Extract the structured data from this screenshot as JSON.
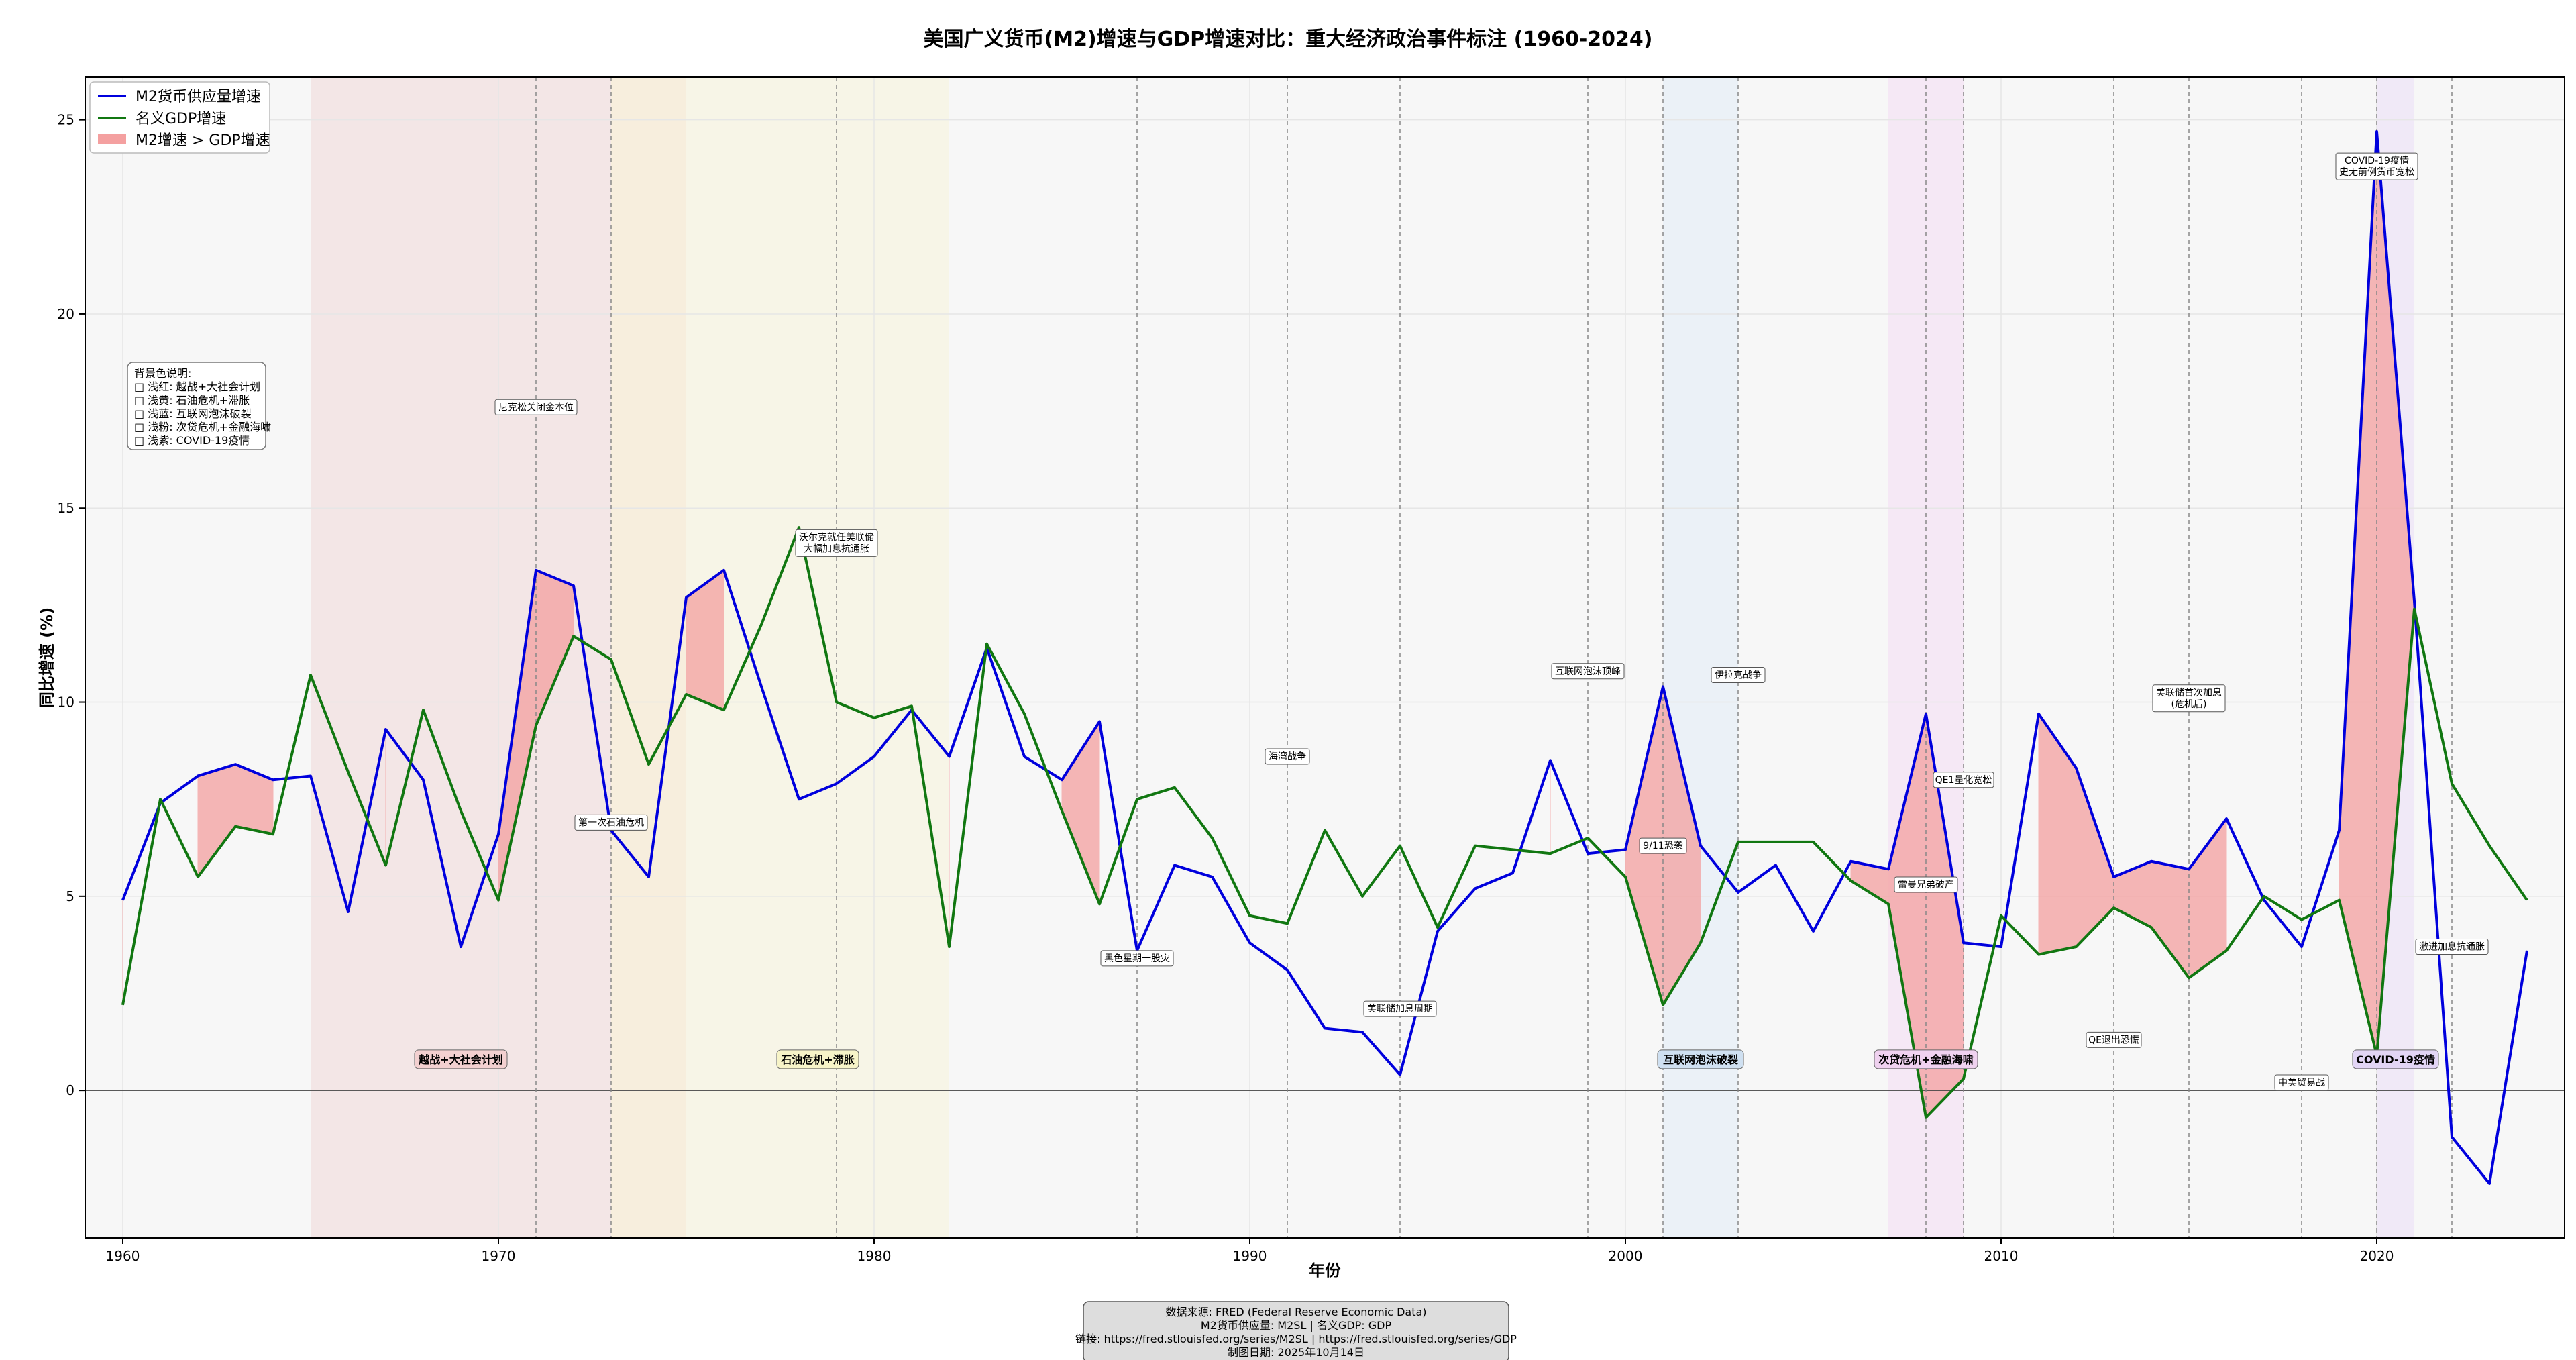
{
  "chart_data": {
    "type": "line",
    "title": "美国广义货币(M2)增速与GDP增速对比：重大经济政治事件标注 (1960-2024)",
    "xlabel": "年份",
    "ylabel": "同比增速 (%)",
    "xlim": [
      1959,
      2025
    ],
    "ylim": [
      -3.8,
      26.1
    ],
    "xticks": [
      1960,
      1970,
      1980,
      1990,
      2000,
      2010,
      2020
    ],
    "yticks": [
      0,
      5,
      10,
      15,
      20,
      25
    ],
    "grid": true,
    "legend_position": "top-left",
    "x": [
      1960,
      1961,
      1962,
      1963,
      1964,
      1965,
      1966,
      1967,
      1968,
      1969,
      1970,
      1971,
      1972,
      1973,
      1974,
      1975,
      1976,
      1977,
      1978,
      1979,
      1980,
      1981,
      1982,
      1983,
      1984,
      1985,
      1986,
      1987,
      1988,
      1989,
      1990,
      1991,
      1992,
      1993,
      1994,
      1995,
      1996,
      1997,
      1998,
      1999,
      2000,
      2001,
      2002,
      2003,
      2004,
      2005,
      2006,
      2007,
      2008,
      2009,
      2010,
      2011,
      2012,
      2013,
      2014,
      2015,
      2016,
      2017,
      2018,
      2019,
      2020,
      2021,
      2022,
      2023,
      2024
    ],
    "series": [
      {
        "name": "M2货币供应量增速",
        "color": "#0000dd",
        "values": [
          4.9,
          7.4,
          8.1,
          8.4,
          8.0,
          8.1,
          4.6,
          9.3,
          8.0,
          3.7,
          6.6,
          13.4,
          13.0,
          6.7,
          5.5,
          12.7,
          13.4,
          10.4,
          7.5,
          7.9,
          8.6,
          9.8,
          8.6,
          11.4,
          8.6,
          8.0,
          9.5,
          3.6,
          5.8,
          5.5,
          3.8,
          3.1,
          1.6,
          1.5,
          0.4,
          4.1,
          5.2,
          5.6,
          8.5,
          6.1,
          6.2,
          10.4,
          6.3,
          5.1,
          5.8,
          4.1,
          5.9,
          5.7,
          9.7,
          3.8,
          3.7,
          9.7,
          8.3,
          5.5,
          5.9,
          5.7,
          7.0,
          4.9,
          3.7,
          6.7,
          24.7,
          12.6,
          -1.2,
          -2.4,
          3.6
        ]
      },
      {
        "name": "名义GDP增速",
        "color": "#117711",
        "values": [
          2.2,
          7.5,
          5.5,
          6.8,
          6.6,
          10.7,
          8.2,
          5.8,
          9.8,
          7.2,
          4.9,
          9.4,
          11.7,
          11.1,
          8.4,
          10.2,
          9.8,
          12.0,
          14.5,
          10.0,
          9.6,
          9.9,
          3.7,
          11.5,
          9.7,
          7.2,
          4.8,
          7.5,
          7.8,
          6.5,
          4.5,
          4.3,
          6.7,
          5.0,
          6.3,
          4.2,
          6.3,
          6.2,
          6.1,
          6.5,
          5.5,
          2.2,
          3.8,
          6.4,
          6.4,
          6.4,
          5.4,
          4.8,
          -0.7,
          0.3,
          4.5,
          3.5,
          3.7,
          4.7,
          4.2,
          2.9,
          3.6,
          5.0,
          4.4,
          4.9,
          0.9,
          12.4,
          7.9,
          6.3,
          4.9
        ]
      }
    ],
    "fill_label": "M2增速 > GDP增速",
    "fill_color": "#f4a0a0",
    "events": [
      {
        "year": 1971,
        "label": "尼克松关闭金本位",
        "y": 17.6
      },
      {
        "year": 1973,
        "label": "第一次石油危机",
        "y": 6.9
      },
      {
        "year": 1979,
        "label": "沃尔克就任美联储\n大幅加息抗通胀",
        "y": 14.1
      },
      {
        "year": 1987,
        "label": "黑色星期一股灾",
        "y": 3.4
      },
      {
        "year": 1991,
        "label": "海湾战争",
        "y": 8.6
      },
      {
        "year": 1994,
        "label": "美联储加息周期",
        "y": 2.1
      },
      {
        "year": 1999,
        "label": "互联网泡沫顶峰",
        "y": 10.8
      },
      {
        "year": 2001,
        "label": "9/11恐袭",
        "y": 6.3
      },
      {
        "year": 2003,
        "label": "伊拉克战争",
        "y": 10.7
      },
      {
        "year": 2008,
        "label": "雷曼兄弟破产",
        "y": 5.3
      },
      {
        "year": 2009,
        "label": "QE1量化宽松",
        "y": 8.0
      },
      {
        "year": 2013,
        "label": "QE退出恐慌",
        "y": 1.3
      },
      {
        "year": 2015,
        "label": "美联储首次加息\n(危机后)",
        "y": 10.1
      },
      {
        "year": 2018,
        "label": "中美贸易战",
        "y": 0.2
      },
      {
        "year": 2020,
        "label": "COVID-19疫情\n史无前例货币宽松",
        "y": 23.8
      },
      {
        "year": 2022,
        "label": "激进加息抗通胀",
        "y": 3.7
      }
    ],
    "periods": [
      {
        "start": 1965,
        "end": 1973,
        "label": "越战+大社会计划",
        "color": "#f1dede",
        "label_color": "#f3d0d0"
      },
      {
        "start": 1973,
        "end": 1975,
        "label": "",
        "color": "#f7ead2",
        "label_color": ""
      },
      {
        "start": 1975,
        "end": 1982,
        "label": "石油危机+滞胀",
        "color": "#f6f4df",
        "label_color": "#f7f4c8"
      },
      {
        "start": 2001,
        "end": 2003,
        "label": "互联网泡沫破裂",
        "color": "#e6eef6",
        "label_color": "#cfe0f1"
      },
      {
        "start": 2007,
        "end": 2009,
        "label": "次贷危机+金融海啸",
        "color": "#f4e1f4",
        "label_color": "#f0d2f0"
      },
      {
        "start": 2020,
        "end": 2021,
        "label": "COVID-19疫情",
        "color": "#ede3f7",
        "label_color": "#e2d5f5"
      }
    ]
  },
  "legend": {
    "items": [
      "M2货币供应量增速",
      "名义GDP增速",
      "M2增速 > GDP增速"
    ]
  },
  "background_note": {
    "lines": [
      "背景色说明:",
      "□ 浅红: 越战+大社会计划",
      "□ 浅黄: 石油危机+滞胀",
      "□ 浅蓝: 互联网泡沫破裂",
      "□ 浅粉: 次贷危机+金融海啸",
      "□ 浅紫: COVID-19疫情"
    ]
  },
  "source_box": {
    "lines": [
      "数据来源: FRED (Federal Reserve Economic Data)",
      "M2货币供应量: M2SL | 名义GDP: GDP",
      "链接: https://fred.stlouisfed.org/series/M2SL | https://fred.stlouisfed.org/series/GDP",
      "制图日期: 2025年10月14日"
    ]
  }
}
